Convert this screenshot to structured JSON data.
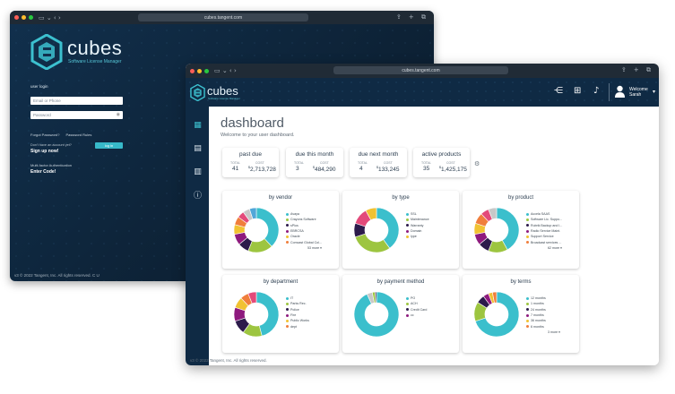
{
  "login_window": {
    "address": "cubes.tangent.com",
    "brand": "cubes",
    "brand_sub": "Software License Manager",
    "form": {
      "title": "user login",
      "email_placeholder": "Email or Phone",
      "password_placeholder": "Password",
      "forgot_password": "Forgot Password?",
      "password_rules": "Password Rules",
      "no_account": "Don't have an account yet?",
      "sign_up": "Sign up now!",
      "login_button": "log in"
    },
    "mfa_title": "Multi-factor Authentication",
    "mfa_action": "Enter Code!",
    "footer": "v3 © 2022 Tangent, Inc. All rights reserved. C U"
  },
  "dashboard_window": {
    "address": "cubes.tangent.com",
    "brand": "cubes",
    "brand_sub": "Software License Manager",
    "user": {
      "welcome": "Welcome",
      "name": "Sarah"
    },
    "title": "dashboard",
    "subtitle": "Welcome to your user dashboard.",
    "stats": [
      {
        "title": "past due",
        "total_label": "TOTAL",
        "cost_label": "COST",
        "total": "41",
        "currency": "$",
        "cost": "2,713,728"
      },
      {
        "title": "due this month",
        "total_label": "TOTAL",
        "cost_label": "COST",
        "total": "3",
        "currency": "$",
        "cost": "484,290"
      },
      {
        "title": "due next month",
        "total_label": "TOTAL",
        "cost_label": "COST",
        "total": "4",
        "currency": "$",
        "cost": "133,245"
      },
      {
        "title": "active products",
        "total_label": "TOTAL",
        "cost_label": "COST",
        "total": "35",
        "currency": "$",
        "cost": "1,425,175"
      }
    ],
    "cards": [
      {
        "title": "by vendor",
        "more": "53 more",
        "legend": [
          "Avaya",
          "Crayons Software",
          "sPlus",
          "EBRCSA",
          "Oracle",
          "Comcast Global Col..."
        ],
        "slices": [
          {
            "value": 38,
            "color": "#3bbfcc"
          },
          {
            "value": 18,
            "color": "#9dc540"
          },
          {
            "value": 8,
            "color": "#2c1b4b"
          },
          {
            "value": 8,
            "color": "#8e1a7e"
          },
          {
            "value": 7,
            "color": "#f1c232"
          },
          {
            "value": 6,
            "color": "#f07e3c"
          },
          {
            "value": 5,
            "color": "#e34a7a"
          },
          {
            "value": 5,
            "color": "#c8c8c8"
          },
          {
            "value": 5,
            "color": "#51a7d8"
          }
        ]
      },
      {
        "title": "by type",
        "more": "",
        "legend": [
          "SSL",
          "Maintenance",
          "Warranty",
          "Domain",
          "Iype"
        ],
        "slices": [
          {
            "value": 40,
            "color": "#3bbfcc"
          },
          {
            "value": 30,
            "color": "#9dc540"
          },
          {
            "value": 10,
            "color": "#2c1b4b"
          },
          {
            "value": 12,
            "color": "#e34a7a"
          },
          {
            "value": 8,
            "color": "#f1c232"
          }
        ]
      },
      {
        "title": "by product",
        "more": "62 more",
        "legend": [
          "Accela SAAS",
          "Software Lic. Suppo...",
          "Rubrik Backup and I...",
          "Radio Service Maint.",
          "Support Service",
          "Broadcast services ..."
        ],
        "slices": [
          {
            "value": 42,
            "color": "#3bbfcc"
          },
          {
            "value": 14,
            "color": "#9dc540"
          },
          {
            "value": 8,
            "color": "#2c1b4b"
          },
          {
            "value": 8,
            "color": "#8e1a7e"
          },
          {
            "value": 8,
            "color": "#f1c232"
          },
          {
            "value": 8,
            "color": "#f07e3c"
          },
          {
            "value": 6,
            "color": "#e34a7a"
          },
          {
            "value": 6,
            "color": "#c8c8c8"
          }
        ]
      },
      {
        "title": "by department",
        "more": "",
        "legend": [
          "IT",
          "Parks Rec.",
          "Police",
          "Fire",
          "Public Works",
          "dept"
        ],
        "slices": [
          {
            "value": 46,
            "color": "#3bbfcc"
          },
          {
            "value": 14,
            "color": "#9dc540"
          },
          {
            "value": 10,
            "color": "#2c1b4b"
          },
          {
            "value": 10,
            "color": "#8e1a7e"
          },
          {
            "value": 8,
            "color": "#f1c232"
          },
          {
            "value": 6,
            "color": "#f07e3c"
          },
          {
            "value": 6,
            "color": "#e34a7a"
          }
        ]
      },
      {
        "title": "by payment method",
        "more": "",
        "legend": [
          "PO",
          "ACH",
          "Credit Card",
          "cc"
        ],
        "slices": [
          {
            "value": 93,
            "color": "#3bbfcc"
          },
          {
            "value": 4,
            "color": "#c8c8c8"
          },
          {
            "value": 2,
            "color": "#9dc540"
          },
          {
            "value": 1,
            "color": "#2c1b4b"
          }
        ]
      },
      {
        "title": "by terms",
        "more": "3 more",
        "legend": [
          "12 months",
          "1 months",
          "24 months",
          "7 months",
          "36 months",
          "6 months"
        ],
        "slices": [
          {
            "value": 70,
            "color": "#3bbfcc"
          },
          {
            "value": 14,
            "color": "#9dc540"
          },
          {
            "value": 6,
            "color": "#2c1b4b"
          },
          {
            "value": 4,
            "color": "#8e1a7e"
          },
          {
            "value": 3,
            "color": "#f1c232"
          },
          {
            "value": 3,
            "color": "#f07e3c"
          }
        ]
      }
    ],
    "legend_colors": [
      "#3bbfcc",
      "#9dc540",
      "#2c1b4b",
      "#8e1a7e",
      "#f1c232",
      "#f07e3c"
    ],
    "footer": "v3 © 2022 Tangent, Inc. All rights reserved."
  }
}
